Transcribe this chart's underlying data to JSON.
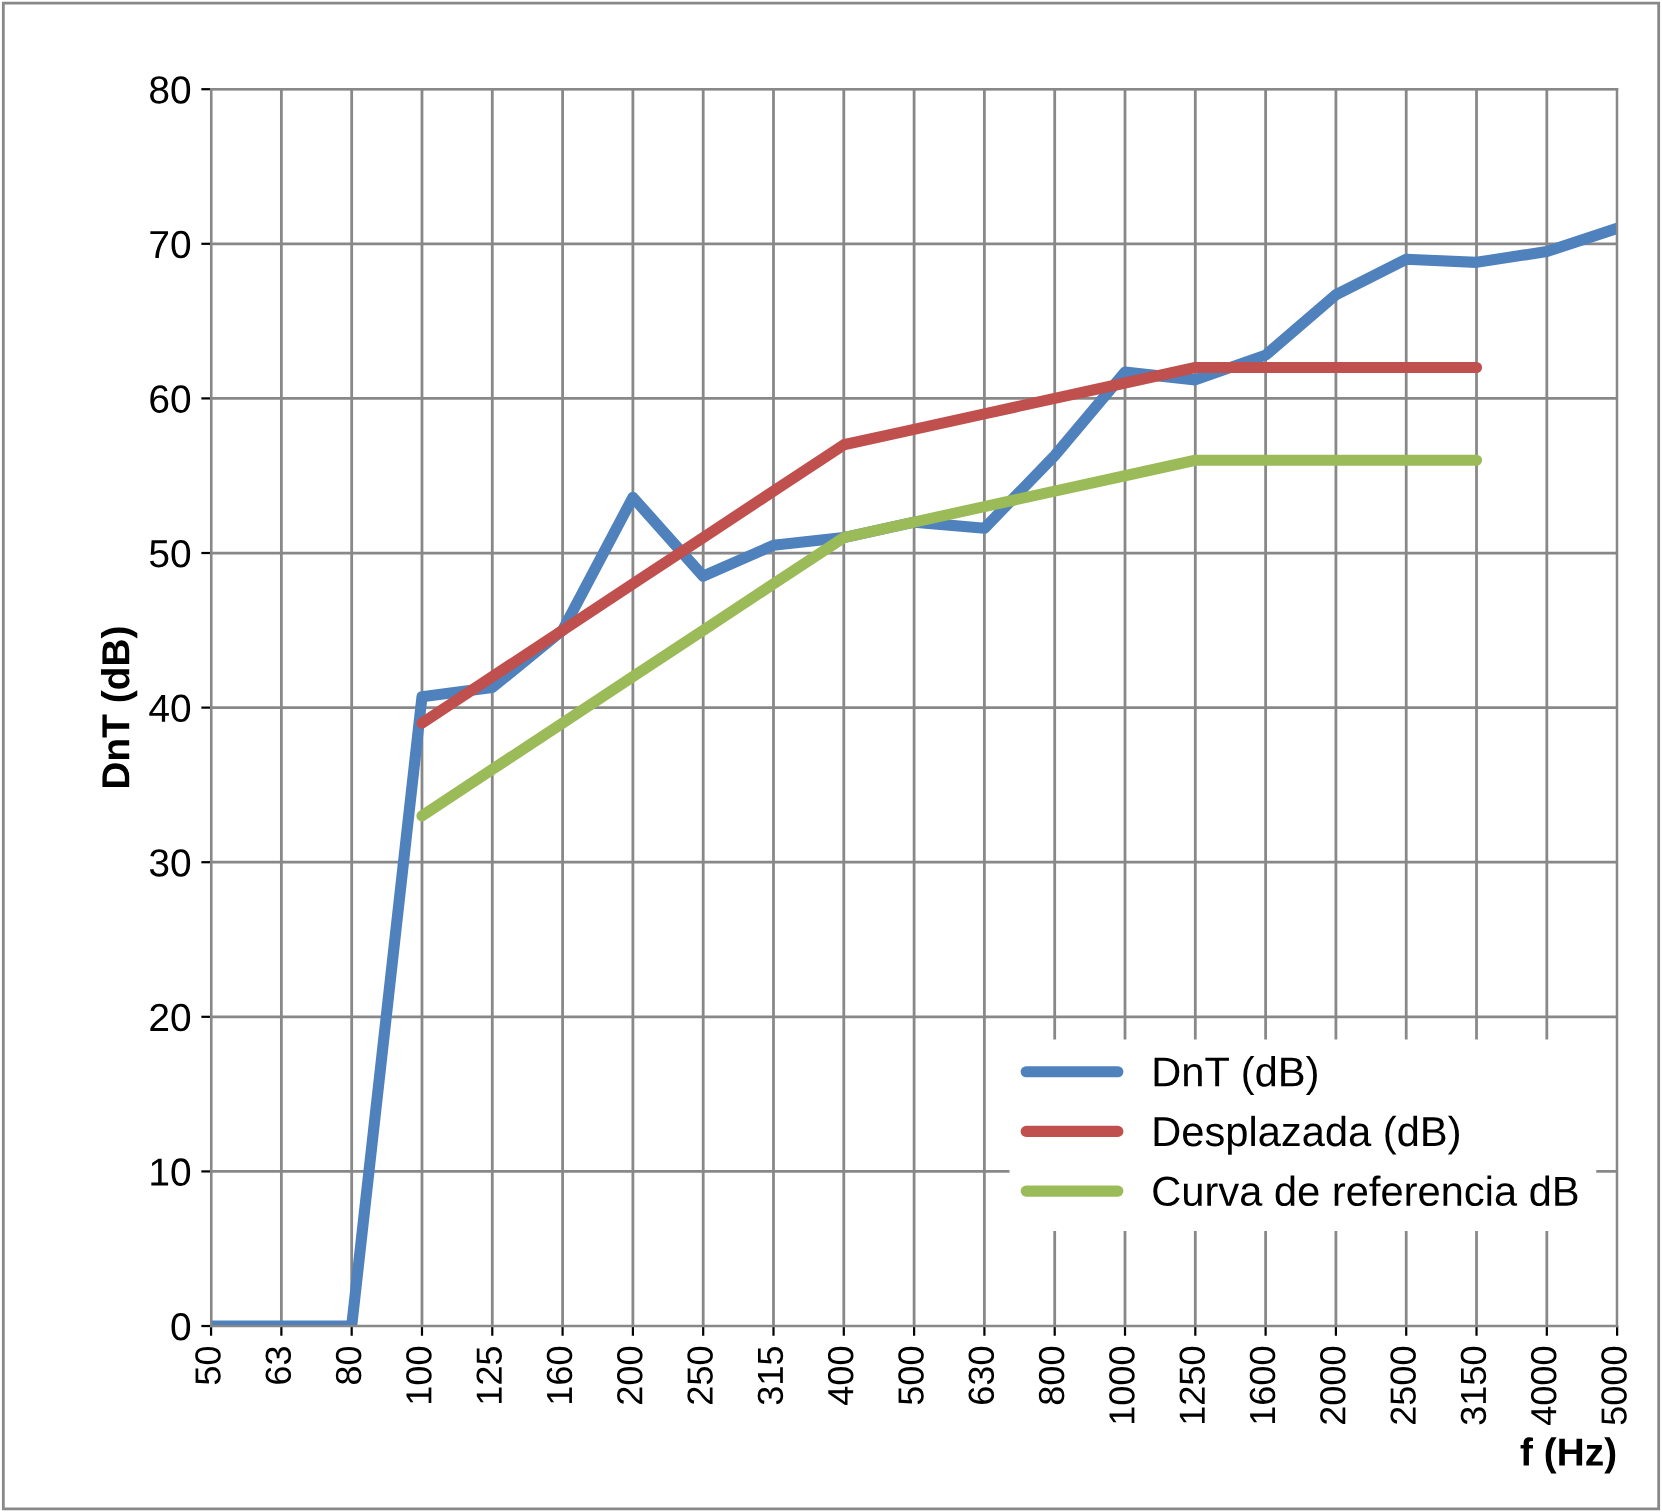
{
  "chart_data": {
    "type": "line",
    "xlabel": "f (Hz)",
    "ylabel": "DnT (dB)",
    "categories": [
      "50",
      "63",
      "80",
      "100",
      "125",
      "160",
      "200",
      "250",
      "315",
      "400",
      "500",
      "630",
      "800",
      "1000",
      "1250",
      "1600",
      "2000",
      "2500",
      "3150",
      "4000",
      "5000"
    ],
    "series": [
      {
        "name": "DnT (dB)",
        "color": "#4f81bd",
        "values": [
          0,
          0,
          0,
          40.7,
          41.3,
          45,
          53.6,
          48.5,
          50.5,
          51,
          52,
          51.6,
          56.3,
          61.7,
          61.2,
          62.8,
          66.7,
          69,
          68.8,
          69.5,
          71
        ]
      },
      {
        "name": "Desplazada (dB)",
        "color": "#c0504d",
        "values": [
          null,
          null,
          null,
          39,
          42,
          45,
          48,
          51,
          54,
          57,
          58,
          59,
          60,
          61,
          62,
          62,
          62,
          62,
          62,
          null,
          null
        ]
      },
      {
        "name": "Curva de referencia dB",
        "color": "#9bbb59",
        "values": [
          null,
          null,
          null,
          33,
          36,
          39,
          42,
          45,
          48,
          51,
          52,
          53,
          54,
          55,
          56,
          56,
          56,
          56,
          56,
          null,
          null
        ]
      }
    ],
    "ylim": [
      0,
      80
    ],
    "yticks": [
      0,
      10,
      20,
      30,
      40,
      50,
      60,
      70,
      80
    ],
    "grid": true,
    "legend": "bottom right",
    "marker": "none",
    "line_style": "solid"
  }
}
